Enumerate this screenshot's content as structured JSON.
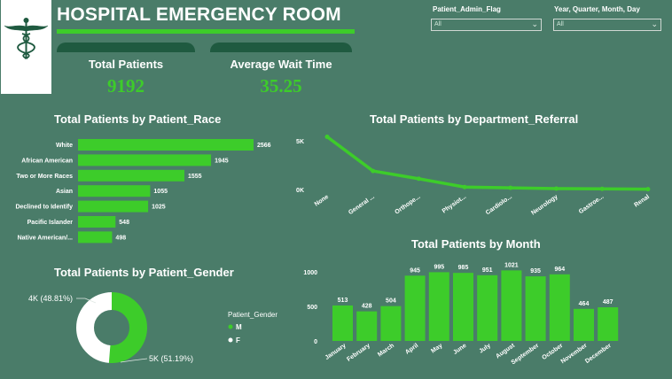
{
  "header": {
    "title": "HOSPITAL EMERGENCY ROOM"
  },
  "logo": {
    "icon": "caduceus-icon"
  },
  "filters": [
    {
      "label": "Patient_Admin_Flag",
      "value": "All"
    },
    {
      "label": "Year, Quarter, Month, Day",
      "value": "All"
    }
  ],
  "kpis": {
    "total_patients": {
      "label": "Total Patients",
      "value": "9192"
    },
    "avg_wait": {
      "label": "Average Wait Time",
      "value": "35.25"
    }
  },
  "colors": {
    "background": "#4a7c69",
    "accent": "#3dcc2a",
    "card_tab": "#1f5a40",
    "donut_f": "#ffffff"
  },
  "chart_data": [
    {
      "id": "race",
      "type": "bar",
      "orientation": "horizontal",
      "title": "Total Patients by Patient_Race",
      "categories": [
        "White",
        "African American",
        "Two or More Races",
        "Asian",
        "Declined to Identify",
        "Pacific Islander",
        "Native American/..."
      ],
      "values": [
        2566,
        1945,
        1555,
        1055,
        1025,
        548,
        498
      ],
      "data_labels": [
        "2566",
        "1945",
        "1555",
        "1055",
        "1025",
        "548",
        "498"
      ]
    },
    {
      "id": "department",
      "type": "line",
      "title": "Total Patients by Department_Referral",
      "categories": [
        "None",
        "General ...",
        "Orthope...",
        "Physiot...",
        "Cardiolo...",
        "Neurology",
        "Gastroe...",
        "Renal"
      ],
      "values": [
        5400,
        1900,
        1100,
        250,
        170,
        90,
        70,
        30
      ],
      "ylim": [
        0,
        5400
      ],
      "yticks": [
        {
          "value": 0,
          "label": "0K"
        },
        {
          "value": 5000,
          "label": "5K"
        }
      ]
    },
    {
      "id": "gender",
      "type": "pie",
      "donut": true,
      "title": "Total Patients by Patient_Gender",
      "legend_title": "Patient_Gender",
      "legend_position": "right",
      "slices": [
        {
          "name": "M",
          "value": 51.19,
          "label": "5K (51.19%)",
          "color": "#3dcc2a"
        },
        {
          "name": "F",
          "value": 48.81,
          "label": "4K (48.81%)",
          "color": "#ffffff"
        }
      ]
    },
    {
      "id": "month",
      "type": "bar",
      "title": "Total Patients by Month",
      "categories": [
        "January",
        "February",
        "March",
        "April",
        "May",
        "June",
        "July",
        "August",
        "September",
        "October",
        "November",
        "December"
      ],
      "values": [
        513,
        428,
        504,
        945,
        995,
        985,
        951,
        1021,
        935,
        964,
        464,
        487
      ],
      "ylim": [
        0,
        1000
      ],
      "yticks": [
        {
          "value": 0,
          "label": "0"
        },
        {
          "value": 500,
          "label": "500"
        },
        {
          "value": 1000,
          "label": "1000"
        }
      ]
    }
  ]
}
